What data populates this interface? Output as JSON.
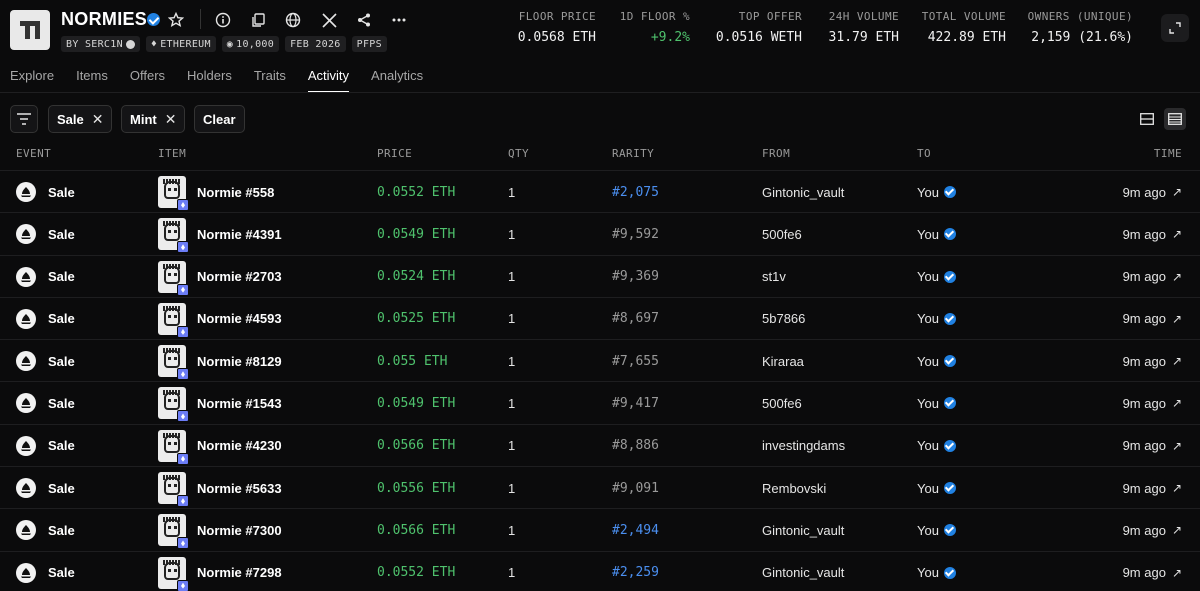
{
  "collection": {
    "name": "NORMIES",
    "chips": [
      "BY SERC1N",
      "ETHEREUM",
      "10,000",
      "FEB 2026",
      "PFPS"
    ]
  },
  "stats": [
    {
      "label": "FLOOR PRICE",
      "value": "0.0568 ETH"
    },
    {
      "label": "1D FLOOR %",
      "value": "+9.2%"
    },
    {
      "label": "TOP OFFER",
      "value": "0.0516 WETH"
    },
    {
      "label": "24H VOLUME",
      "value": "31.79 ETH"
    },
    {
      "label": "TOTAL VOLUME",
      "value": "422.89 ETH"
    },
    {
      "label": "OWNERS (UNIQUE)",
      "value": "2,159 (21.6%)"
    }
  ],
  "tabs": [
    "Explore",
    "Items",
    "Offers",
    "Holders",
    "Traits",
    "Activity",
    "Analytics"
  ],
  "active_tab": "Activity",
  "filters": {
    "sale": "Sale",
    "mint": "Mint",
    "clear": "Clear"
  },
  "columns": [
    "EVENT",
    "ITEM",
    "PRICE",
    "QTY",
    "RARITY",
    "FROM",
    "TO",
    "TIME"
  ],
  "rows": [
    {
      "event": "Sale",
      "item": "Normie #558",
      "price": "0.0552 ETH",
      "qty": "1",
      "rarity": "#2,075",
      "from": "Gintonic_vault",
      "to": "You",
      "time": "9m ago"
    },
    {
      "event": "Sale",
      "item": "Normie #4391",
      "price": "0.0549 ETH",
      "qty": "1",
      "rarity": "#9,592",
      "from": "500fe6",
      "to": "You",
      "time": "9m ago"
    },
    {
      "event": "Sale",
      "item": "Normie #2703",
      "price": "0.0524 ETH",
      "qty": "1",
      "rarity": "#9,369",
      "from": "st1v",
      "to": "You",
      "time": "9m ago"
    },
    {
      "event": "Sale",
      "item": "Normie #4593",
      "price": "0.0525 ETH",
      "qty": "1",
      "rarity": "#8,697",
      "from": "5b7866",
      "to": "You",
      "time": "9m ago"
    },
    {
      "event": "Sale",
      "item": "Normie #8129",
      "price": "0.055 ETH",
      "qty": "1",
      "rarity": "#7,655",
      "from": "Kiraraa",
      "to": "You",
      "time": "9m ago"
    },
    {
      "event": "Sale",
      "item": "Normie #1543",
      "price": "0.0549 ETH",
      "qty": "1",
      "rarity": "#9,417",
      "from": "500fe6",
      "to": "You",
      "time": "9m ago"
    },
    {
      "event": "Sale",
      "item": "Normie #4230",
      "price": "0.0566 ETH",
      "qty": "1",
      "rarity": "#8,886",
      "from": "investingdams",
      "to": "You",
      "time": "9m ago"
    },
    {
      "event": "Sale",
      "item": "Normie #5633",
      "price": "0.0556 ETH",
      "qty": "1",
      "rarity": "#9,091",
      "from": "Rembovski",
      "to": "You",
      "time": "9m ago"
    },
    {
      "event": "Sale",
      "item": "Normie #7300",
      "price": "0.0566 ETH",
      "qty": "1",
      "rarity": "#2,494",
      "from": "Gintonic_vault",
      "to": "You",
      "time": "9m ago"
    },
    {
      "event": "Sale",
      "item": "Normie #7298",
      "price": "0.0552 ETH",
      "qty": "1",
      "rarity": "#2,259",
      "from": "Gintonic_vault",
      "to": "You",
      "time": "9m ago"
    }
  ],
  "colors": {
    "price_green": "#4fc26d",
    "rarity_blue": "#4b8ff0",
    "verified_blue": "#2081e2"
  }
}
